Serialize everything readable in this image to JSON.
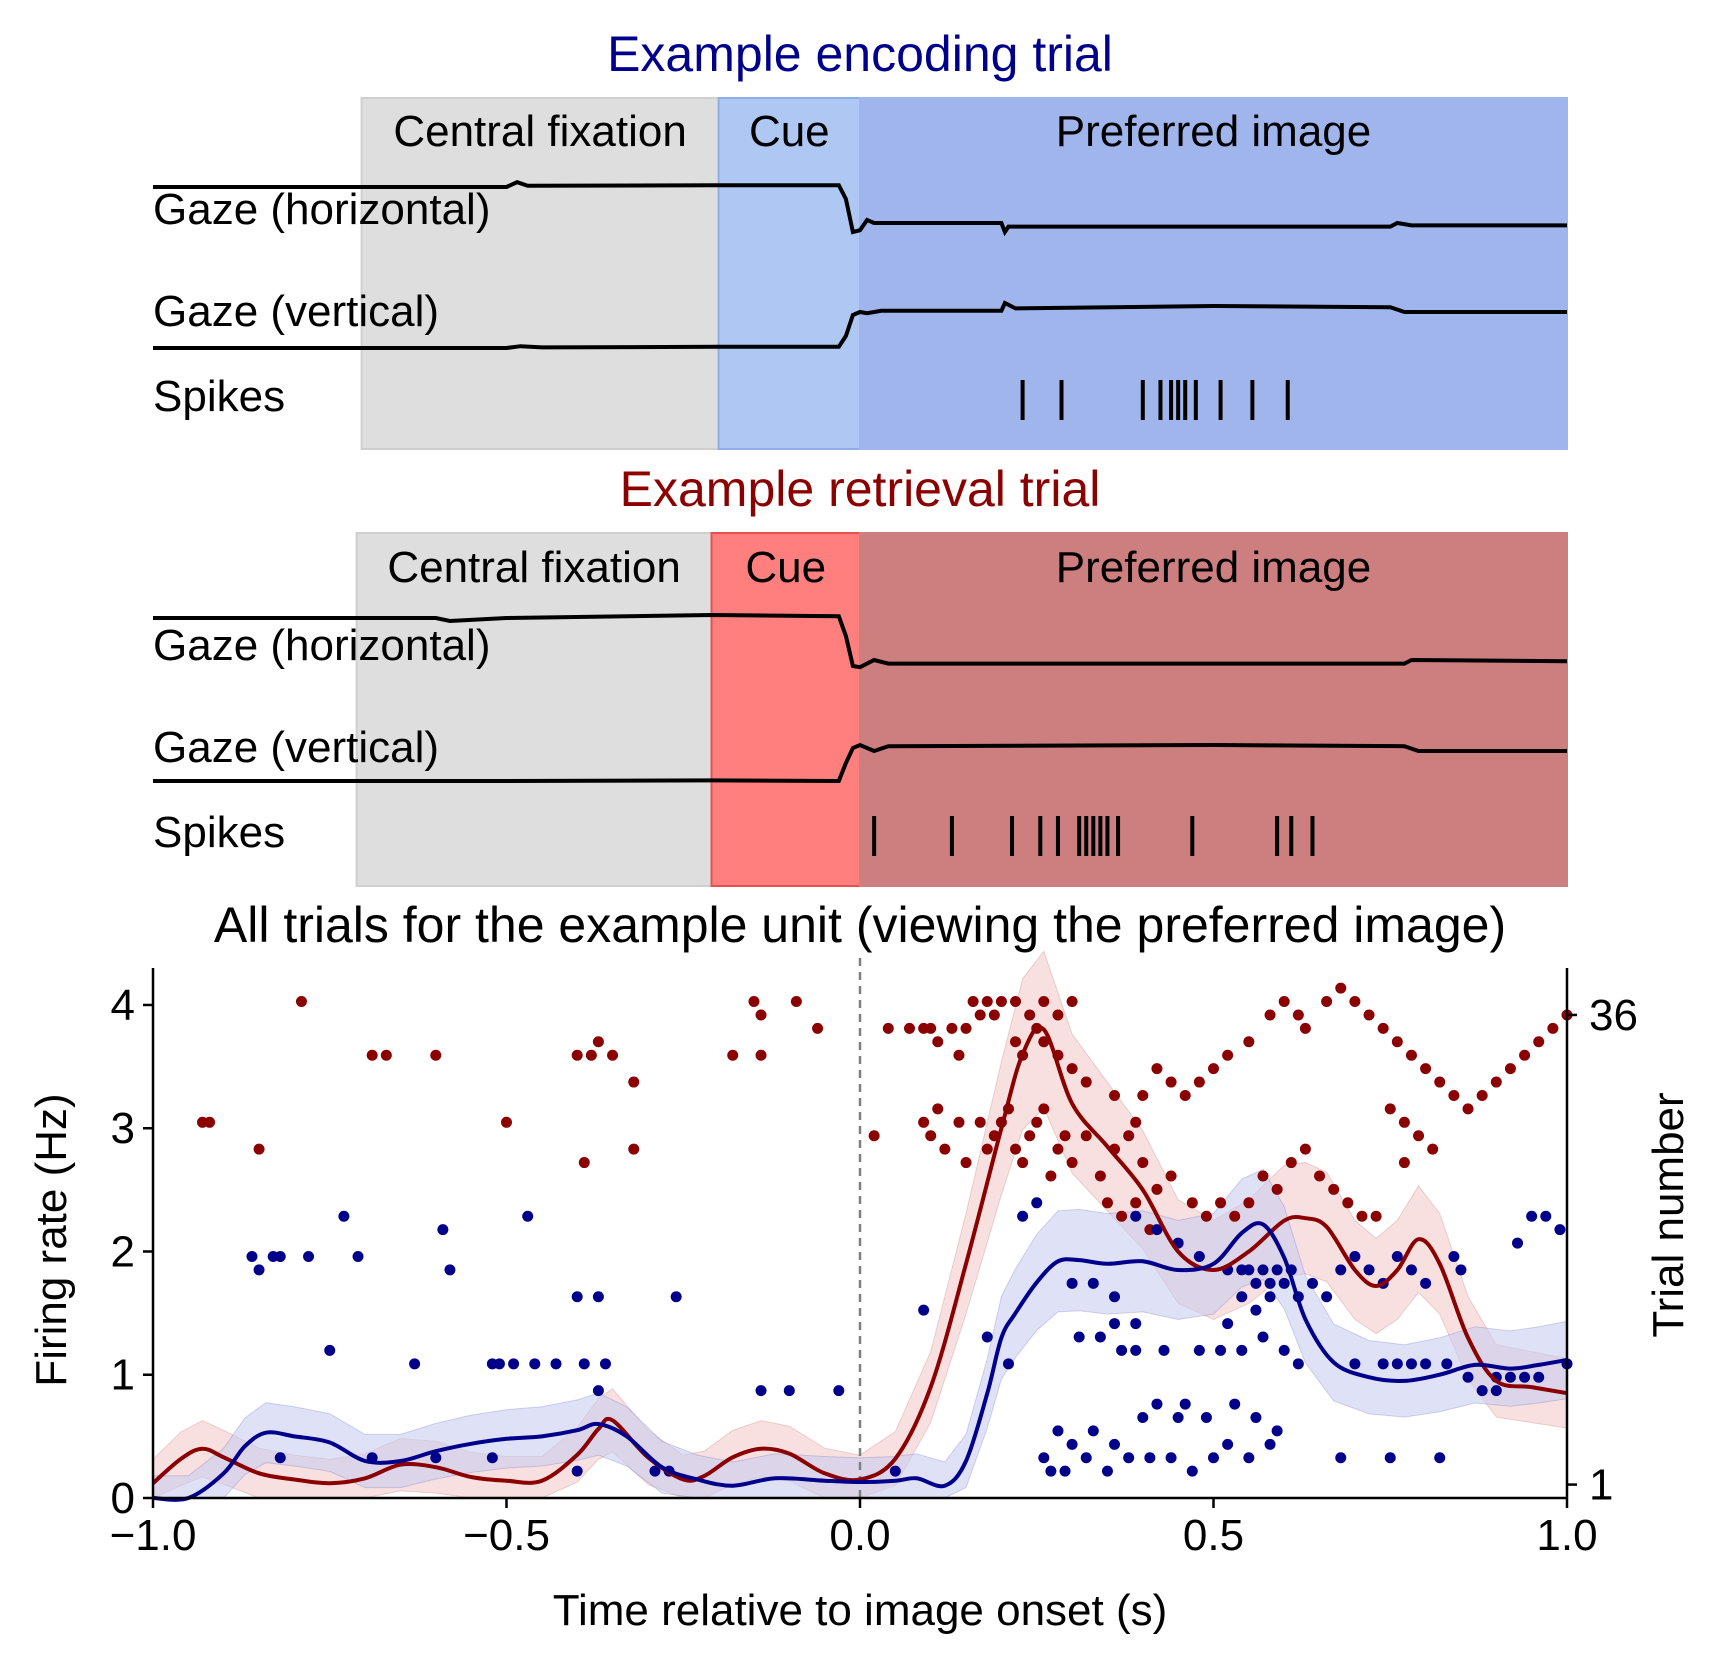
{
  "colors": {
    "encoding": "#00008b",
    "retrieval": "#8b0000",
    "fixation_bg": "#dedede",
    "enc_cue_bg": "#aec7f3",
    "enc_image_bg": "#a0b5ec",
    "ret_cue_bg": "#ff7f7f",
    "ret_image_bg": "#cd7f7f",
    "gaze_trace": "#000000",
    "enc_ci": "#c9cdf0",
    "ret_ci": "#f3cccc",
    "onset_line": "#808080"
  },
  "panels": [
    {
      "id": "encoding",
      "title": "Example encoding trial",
      "phase_labels": [
        "Central fixation",
        "Cue",
        "Preferred image"
      ],
      "phases_s": [
        -0.705,
        -0.2,
        0.0,
        1.0
      ],
      "trace_labels": [
        "Gaze (horizontal)",
        "Gaze (vertical)",
        "Spikes"
      ],
      "gaze_h": [
        [
          -1.0,
          0.0
        ],
        [
          -0.5,
          0.0
        ],
        [
          -0.485,
          0.08
        ],
        [
          -0.47,
          0.02
        ],
        [
          -0.2,
          0.03
        ],
        [
          -0.03,
          0.03
        ],
        [
          -0.02,
          -0.2
        ],
        [
          -0.01,
          -0.75
        ],
        [
          0.0,
          -0.72
        ],
        [
          0.01,
          -0.55
        ],
        [
          0.02,
          -0.6
        ],
        [
          0.2,
          -0.6
        ],
        [
          0.205,
          -0.75
        ],
        [
          0.21,
          -0.66
        ],
        [
          0.75,
          -0.66
        ],
        [
          0.76,
          -0.6
        ],
        [
          0.78,
          -0.64
        ],
        [
          1.0,
          -0.64
        ]
      ],
      "gaze_v": [
        [
          -1.0,
          0.0
        ],
        [
          -0.5,
          0.0
        ],
        [
          -0.48,
          0.03
        ],
        [
          -0.45,
          0.01
        ],
        [
          -0.2,
          0.02
        ],
        [
          -0.03,
          0.02
        ],
        [
          -0.02,
          0.2
        ],
        [
          -0.01,
          0.55
        ],
        [
          0.0,
          0.6
        ],
        [
          0.01,
          0.58
        ],
        [
          0.03,
          0.62
        ],
        [
          0.2,
          0.62
        ],
        [
          0.205,
          0.75
        ],
        [
          0.22,
          0.66
        ],
        [
          0.5,
          0.7
        ],
        [
          0.75,
          0.68
        ],
        [
          0.77,
          0.6
        ],
        [
          1.0,
          0.6
        ]
      ],
      "spikes": [
        0.23,
        0.285,
        0.4,
        0.425,
        0.44,
        0.45,
        0.46,
        0.475,
        0.51,
        0.555,
        0.605
      ]
    },
    {
      "id": "retrieval",
      "title": "Example retrieval trial",
      "phase_labels": [
        "Central fixation",
        "Cue",
        "Preferred image"
      ],
      "phases_s": [
        -0.712,
        -0.21,
        0.0,
        1.0
      ],
      "trace_labels": [
        "Gaze (horizontal)",
        "Gaze (vertical)",
        "Spikes"
      ],
      "gaze_h": [
        [
          -1.0,
          0.0
        ],
        [
          -0.6,
          0.0
        ],
        [
          -0.58,
          -0.05
        ],
        [
          -0.5,
          0.0
        ],
        [
          -0.21,
          0.05
        ],
        [
          -0.03,
          0.03
        ],
        [
          -0.02,
          -0.3
        ],
        [
          -0.01,
          -0.8
        ],
        [
          0.0,
          -0.82
        ],
        [
          0.02,
          -0.7
        ],
        [
          0.04,
          -0.76
        ],
        [
          0.77,
          -0.76
        ],
        [
          0.78,
          -0.7
        ],
        [
          1.0,
          -0.72
        ]
      ],
      "gaze_v": [
        [
          -1.0,
          0.0
        ],
        [
          -0.5,
          0.0
        ],
        [
          -0.21,
          0.01
        ],
        [
          -0.03,
          0.0
        ],
        [
          -0.02,
          0.3
        ],
        [
          -0.01,
          0.55
        ],
        [
          0.0,
          0.6
        ],
        [
          0.02,
          0.5
        ],
        [
          0.04,
          0.58
        ],
        [
          0.5,
          0.6
        ],
        [
          0.77,
          0.58
        ],
        [
          0.79,
          0.5
        ],
        [
          1.0,
          0.5
        ]
      ],
      "spikes": [
        0.02,
        0.13,
        0.215,
        0.255,
        0.28,
        0.31,
        0.32,
        0.33,
        0.34,
        0.35,
        0.365,
        0.47,
        0.59,
        0.61,
        0.64
      ]
    }
  ],
  "chart_data": {
    "type": "line",
    "title": "All trials for the example unit (viewing the preferred image)",
    "xlabel": "Time relative to image onset (s)",
    "ylabel": "Firing rate (Hz)",
    "y2label": "Trial number",
    "xlim": [
      -1.0,
      1.0
    ],
    "ylim": [
      0,
      4.3
    ],
    "y2lim": [
      0,
      39.5
    ],
    "xticks": [
      -1.0,
      -0.5,
      0.0,
      0.5,
      1.0
    ],
    "xticklabels": [
      "−1.0",
      "−0.5",
      "0.0",
      "0.5",
      "1.0"
    ],
    "yticks": [
      0,
      1,
      2,
      3,
      4
    ],
    "yticklabels": [
      "0",
      "1",
      "2",
      "3",
      "4"
    ],
    "y2ticks": [
      1,
      36
    ],
    "y2ticklabels": [
      "1",
      "36"
    ],
    "vline_x": 0.0,
    "series": [
      {
        "condition": "retrieval",
        "x": [
          -1.0,
          -0.96,
          -0.93,
          -0.9,
          -0.85,
          -0.8,
          -0.75,
          -0.7,
          -0.65,
          -0.6,
          -0.55,
          -0.5,
          -0.45,
          -0.4,
          -0.37,
          -0.35,
          -0.3,
          -0.25,
          -0.22,
          -0.18,
          -0.14,
          -0.1,
          -0.05,
          0.0,
          0.05,
          0.1,
          0.15,
          0.2,
          0.23,
          0.26,
          0.3,
          0.35,
          0.4,
          0.45,
          0.5,
          0.55,
          0.6,
          0.63,
          0.66,
          0.7,
          0.73,
          0.76,
          0.79,
          0.82,
          0.86,
          0.9,
          0.95,
          1.0
        ],
        "y": [
          0.12,
          0.32,
          0.4,
          0.33,
          0.2,
          0.15,
          0.12,
          0.16,
          0.27,
          0.25,
          0.17,
          0.14,
          0.14,
          0.35,
          0.56,
          0.63,
          0.33,
          0.15,
          0.18,
          0.33,
          0.4,
          0.36,
          0.2,
          0.15,
          0.32,
          0.9,
          1.9,
          3.0,
          3.6,
          3.8,
          3.2,
          2.85,
          2.5,
          2.0,
          1.85,
          2.0,
          2.25,
          2.27,
          2.2,
          1.85,
          1.72,
          1.85,
          2.1,
          1.9,
          1.3,
          0.95,
          0.9,
          0.85
        ]
      },
      {
        "condition": "encoding",
        "x": [
          -1.0,
          -0.95,
          -0.9,
          -0.87,
          -0.84,
          -0.8,
          -0.75,
          -0.7,
          -0.65,
          -0.6,
          -0.55,
          -0.5,
          -0.45,
          -0.4,
          -0.37,
          -0.33,
          -0.28,
          -0.23,
          -0.18,
          -0.12,
          -0.05,
          0.0,
          0.05,
          0.08,
          0.12,
          0.15,
          0.18,
          0.2,
          0.22,
          0.25,
          0.28,
          0.31,
          0.35,
          0.4,
          0.45,
          0.5,
          0.54,
          0.57,
          0.6,
          0.63,
          0.67,
          0.72,
          0.77,
          0.82,
          0.87,
          0.92,
          0.96,
          1.0
        ],
        "y": [
          0.0,
          0.0,
          0.2,
          0.42,
          0.53,
          0.5,
          0.45,
          0.3,
          0.3,
          0.38,
          0.44,
          0.48,
          0.5,
          0.55,
          0.6,
          0.5,
          0.25,
          0.15,
          0.1,
          0.16,
          0.14,
          0.13,
          0.14,
          0.16,
          0.1,
          0.3,
          0.85,
          1.3,
          1.5,
          1.75,
          1.92,
          1.93,
          1.9,
          1.92,
          1.85,
          1.9,
          2.15,
          2.22,
          1.95,
          1.45,
          1.1,
          0.98,
          0.95,
          1.0,
          1.08,
          1.05,
          1.08,
          1.12
        ]
      }
    ],
    "raster_retrieval": [
      [
        -0.93,
        28
      ],
      [
        -0.92,
        28
      ],
      [
        -0.85,
        26
      ],
      [
        -0.79,
        37
      ],
      [
        -0.69,
        33
      ],
      [
        -0.67,
        33
      ],
      [
        -0.6,
        33
      ],
      [
        -0.5,
        28
      ],
      [
        -0.4,
        33
      ],
      [
        -0.39,
        25
      ],
      [
        -0.38,
        33
      ],
      [
        -0.37,
        34
      ],
      [
        -0.35,
        33
      ],
      [
        -0.32,
        31
      ],
      [
        -0.32,
        26
      ],
      [
        -0.18,
        33
      ],
      [
        -0.15,
        37
      ],
      [
        -0.14,
        33
      ],
      [
        -0.09,
        37
      ],
      [
        -0.06,
        35
      ],
      [
        -0.14,
        36
      ],
      [
        0.02,
        27
      ],
      [
        0.04,
        35
      ],
      [
        0.07,
        35
      ],
      [
        0.09,
        35
      ],
      [
        0.1,
        35
      ],
      [
        0.11,
        34
      ],
      [
        0.13,
        35
      ],
      [
        0.14,
        33
      ],
      [
        0.15,
        35
      ],
      [
        0.16,
        37
      ],
      [
        0.17,
        36
      ],
      [
        0.18,
        37
      ],
      [
        0.19,
        36
      ],
      [
        0.2,
        37
      ],
      [
        0.22,
        37
      ],
      [
        0.24,
        36
      ],
      [
        0.26,
        37
      ],
      [
        0.28,
        36
      ],
      [
        0.3,
        37
      ],
      [
        0.09,
        28
      ],
      [
        0.1,
        27
      ],
      [
        0.11,
        29
      ],
      [
        0.12,
        26
      ],
      [
        0.14,
        28
      ],
      [
        0.15,
        25
      ],
      [
        0.17,
        28
      ],
      [
        0.18,
        26
      ],
      [
        0.19,
        27
      ],
      [
        0.2,
        28
      ],
      [
        0.21,
        29
      ],
      [
        0.22,
        26
      ],
      [
        0.23,
        25
      ],
      [
        0.24,
        27
      ],
      [
        0.25,
        28
      ],
      [
        0.26,
        29
      ],
      [
        0.27,
        24
      ],
      [
        0.28,
        26
      ],
      [
        0.29,
        27
      ],
      [
        0.3,
        25
      ],
      [
        0.32,
        27
      ],
      [
        0.34,
        24
      ],
      [
        0.36,
        26
      ],
      [
        0.38,
        27
      ],
      [
        0.39,
        28
      ],
      [
        0.4,
        25
      ],
      [
        0.42,
        23
      ],
      [
        0.44,
        24
      ],
      [
        0.22,
        34
      ],
      [
        0.23,
        33
      ],
      [
        0.25,
        35
      ],
      [
        0.26,
        34
      ],
      [
        0.28,
        33
      ],
      [
        0.3,
        32
      ],
      [
        0.32,
        31
      ],
      [
        0.36,
        30
      ],
      [
        0.4,
        30
      ],
      [
        0.42,
        32
      ],
      [
        0.44,
        31
      ],
      [
        0.46,
        30
      ],
      [
        0.48,
        31
      ],
      [
        0.5,
        32
      ],
      [
        0.52,
        33
      ],
      [
        0.55,
        34
      ],
      [
        0.58,
        36
      ],
      [
        0.6,
        37
      ],
      [
        0.62,
        36
      ],
      [
        0.63,
        35
      ],
      [
        0.66,
        37
      ],
      [
        0.68,
        38
      ],
      [
        0.7,
        37
      ],
      [
        0.72,
        36
      ],
      [
        0.74,
        35
      ],
      [
        0.76,
        34
      ],
      [
        0.78,
        33
      ],
      [
        0.8,
        32
      ],
      [
        0.82,
        31
      ],
      [
        0.84,
        30
      ],
      [
        0.86,
        29
      ],
      [
        0.75,
        29
      ],
      [
        0.77,
        28
      ],
      [
        0.79,
        27
      ],
      [
        0.65,
        24
      ],
      [
        0.67,
        23
      ],
      [
        0.69,
        22
      ],
      [
        0.71,
        21
      ],
      [
        0.88,
        30
      ],
      [
        0.9,
        31
      ],
      [
        0.92,
        32
      ],
      [
        0.94,
        33
      ],
      [
        0.96,
        34
      ],
      [
        0.98,
        35
      ],
      [
        1.0,
        36
      ],
      [
        0.35,
        22
      ],
      [
        0.37,
        21
      ],
      [
        0.39,
        22
      ],
      [
        0.41,
        20
      ],
      [
        0.47,
        22
      ],
      [
        0.49,
        21
      ],
      [
        0.51,
        22
      ],
      [
        0.53,
        21
      ],
      [
        0.55,
        22
      ],
      [
        0.57,
        24
      ],
      [
        0.59,
        23
      ],
      [
        0.61,
        25
      ],
      [
        0.63,
        26
      ],
      [
        0.73,
        21
      ],
      [
        0.77,
        25
      ],
      [
        0.81,
        26
      ]
    ],
    "raster_encoding": [
      [
        -0.86,
        18
      ],
      [
        -0.85,
        17
      ],
      [
        -0.83,
        18
      ],
      [
        -0.82,
        18
      ],
      [
        -0.78,
        18
      ],
      [
        -0.75,
        11
      ],
      [
        -0.73,
        21
      ],
      [
        -0.71,
        18
      ],
      [
        -0.63,
        10
      ],
      [
        -0.59,
        20
      ],
      [
        -0.58,
        17
      ],
      [
        -0.52,
        10
      ],
      [
        -0.51,
        10
      ],
      [
        -0.49,
        10
      ],
      [
        -0.47,
        21
      ],
      [
        -0.46,
        10
      ],
      [
        -0.43,
        10
      ],
      [
        -0.4,
        15
      ],
      [
        -0.39,
        10
      ],
      [
        -0.37,
        15
      ],
      [
        -0.36,
        10
      ],
      [
        -0.26,
        15
      ],
      [
        -0.14,
        8
      ],
      [
        -0.1,
        8
      ],
      [
        -0.03,
        8
      ],
      [
        -0.37,
        8
      ],
      [
        -0.82,
        3
      ],
      [
        -0.69,
        3
      ],
      [
        -0.6,
        3
      ],
      [
        -0.52,
        3
      ],
      [
        -0.4,
        2
      ],
      [
        -0.29,
        2
      ],
      [
        -0.27,
        2
      ],
      [
        0.05,
        2
      ],
      [
        0.09,
        14
      ],
      [
        0.18,
        12
      ],
      [
        0.21,
        10
      ],
      [
        0.23,
        21
      ],
      [
        0.25,
        22
      ],
      [
        0.26,
        3
      ],
      [
        0.27,
        2
      ],
      [
        0.28,
        5
      ],
      [
        0.29,
        2
      ],
      [
        0.3,
        4
      ],
      [
        0.3,
        16
      ],
      [
        0.31,
        12
      ],
      [
        0.32,
        3
      ],
      [
        0.33,
        5
      ],
      [
        0.34,
        12
      ],
      [
        0.35,
        2
      ],
      [
        0.36,
        4
      ],
      [
        0.37,
        11
      ],
      [
        0.38,
        3
      ],
      [
        0.39,
        11
      ],
      [
        0.4,
        6
      ],
      [
        0.41,
        3
      ],
      [
        0.42,
        7
      ],
      [
        0.43,
        11
      ],
      [
        0.44,
        3
      ],
      [
        0.45,
        6
      ],
      [
        0.46,
        7
      ],
      [
        0.47,
        2
      ],
      [
        0.48,
        11
      ],
      [
        0.49,
        6
      ],
      [
        0.5,
        3
      ],
      [
        0.51,
        11
      ],
      [
        0.52,
        4
      ],
      [
        0.53,
        7
      ],
      [
        0.54,
        11
      ],
      [
        0.55,
        3
      ],
      [
        0.56,
        6
      ],
      [
        0.57,
        12
      ],
      [
        0.58,
        4
      ],
      [
        0.59,
        5
      ],
      [
        0.6,
        11
      ],
      [
        0.62,
        10
      ],
      [
        0.33,
        16
      ],
      [
        0.36,
        15
      ],
      [
        0.39,
        21
      ],
      [
        0.42,
        20
      ],
      [
        0.45,
        19
      ],
      [
        0.48,
        18
      ],
      [
        0.52,
        17
      ],
      [
        0.54,
        17
      ],
      [
        0.55,
        17
      ],
      [
        0.56,
        16
      ],
      [
        0.57,
        17
      ],
      [
        0.58,
        16
      ],
      [
        0.59,
        17
      ],
      [
        0.6,
        16
      ],
      [
        0.61,
        17
      ],
      [
        0.62,
        15
      ],
      [
        0.64,
        16
      ],
      [
        0.66,
        15
      ],
      [
        0.68,
        17
      ],
      [
        0.7,
        18
      ],
      [
        0.72,
        17
      ],
      [
        0.74,
        16
      ],
      [
        0.76,
        18
      ],
      [
        0.78,
        17
      ],
      [
        0.8,
        16
      ],
      [
        0.84,
        18
      ],
      [
        0.85,
        17
      ],
      [
        0.9,
        8
      ],
      [
        0.93,
        19
      ],
      [
        0.95,
        21
      ],
      [
        0.97,
        21
      ],
      [
        0.99,
        20
      ],
      [
        0.68,
        3
      ],
      [
        0.75,
        3
      ],
      [
        0.82,
        3
      ],
      [
        0.7,
        10
      ],
      [
        0.74,
        10
      ],
      [
        0.76,
        10
      ],
      [
        0.78,
        10
      ],
      [
        0.8,
        10
      ],
      [
        0.83,
        10
      ],
      [
        0.86,
        9
      ],
      [
        0.88,
        8
      ],
      [
        0.9,
        9
      ],
      [
        0.92,
        9
      ],
      [
        0.94,
        9
      ],
      [
        0.96,
        9
      ],
      [
        1.0,
        10
      ],
      [
        0.52,
        13
      ],
      [
        0.56,
        14
      ],
      [
        0.58,
        15
      ],
      [
        0.54,
        15
      ],
      [
        0.36,
        13
      ],
      [
        0.39,
        13
      ]
    ]
  }
}
